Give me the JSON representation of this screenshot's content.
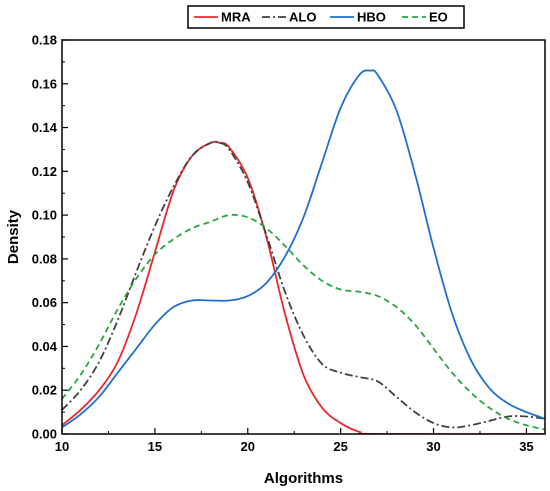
{
  "chart_data": {
    "type": "line",
    "xlabel": "Algorithms",
    "ylabel": "Density",
    "xlim": [
      10,
      36
    ],
    "ylim": [
      0,
      0.18
    ],
    "x_ticks": [
      10,
      15,
      20,
      25,
      30,
      35
    ],
    "y_ticks": [
      0.0,
      0.02,
      0.04,
      0.06,
      0.08,
      0.1,
      0.12,
      0.14,
      0.16,
      0.18
    ],
    "grid": false,
    "legend_position": "top",
    "series": [
      {
        "name": "MRA",
        "color": "#e8282b",
        "dash": "solid",
        "points": [
          [
            10,
            0.004
          ],
          [
            11,
            0.011
          ],
          [
            12,
            0.02
          ],
          [
            13,
            0.033
          ],
          [
            14,
            0.055
          ],
          [
            15,
            0.083
          ],
          [
            16,
            0.111
          ],
          [
            17,
            0.127
          ],
          [
            18,
            0.133
          ],
          [
            18.5,
            0.133
          ],
          [
            19,
            0.131
          ],
          [
            20,
            0.117
          ],
          [
            21,
            0.09
          ],
          [
            22,
            0.055
          ],
          [
            23,
            0.027
          ],
          [
            24,
            0.012
          ],
          [
            25,
            0.005
          ],
          [
            26,
            0.001
          ],
          [
            27,
            0.0
          ],
          [
            36,
            0.0
          ]
        ]
      },
      {
        "name": "ALO",
        "color": "#404040",
        "dash": "dashdot",
        "points": [
          [
            10,
            0.011
          ],
          [
            11,
            0.02
          ],
          [
            12,
            0.033
          ],
          [
            13,
            0.052
          ],
          [
            14,
            0.074
          ],
          [
            15,
            0.095
          ],
          [
            16,
            0.113
          ],
          [
            17,
            0.127
          ],
          [
            18,
            0.133
          ],
          [
            18.5,
            0.133
          ],
          [
            19,
            0.13
          ],
          [
            20,
            0.115
          ],
          [
            21,
            0.091
          ],
          [
            22,
            0.065
          ],
          [
            23,
            0.045
          ],
          [
            24,
            0.032
          ],
          [
            25,
            0.028
          ],
          [
            26,
            0.026
          ],
          [
            27,
            0.024
          ],
          [
            28,
            0.017
          ],
          [
            29,
            0.01
          ],
          [
            30,
            0.005
          ],
          [
            31,
            0.003
          ],
          [
            32,
            0.004
          ],
          [
            33,
            0.006
          ],
          [
            34,
            0.008
          ],
          [
            35,
            0.008
          ],
          [
            36,
            0.007
          ]
        ]
      },
      {
        "name": "HBO",
        "color": "#1f6fd1",
        "dash": "solid",
        "points": [
          [
            10,
            0.003
          ],
          [
            11,
            0.009
          ],
          [
            12,
            0.017
          ],
          [
            13,
            0.028
          ],
          [
            14,
            0.039
          ],
          [
            15,
            0.05
          ],
          [
            16,
            0.058
          ],
          [
            17,
            0.061
          ],
          [
            18,
            0.061
          ],
          [
            19,
            0.061
          ],
          [
            20,
            0.063
          ],
          [
            21,
            0.069
          ],
          [
            22,
            0.081
          ],
          [
            23,
            0.099
          ],
          [
            24,
            0.124
          ],
          [
            25,
            0.149
          ],
          [
            26,
            0.164
          ],
          [
            26.6,
            0.166
          ],
          [
            27,
            0.164
          ],
          [
            28,
            0.148
          ],
          [
            29,
            0.119
          ],
          [
            30,
            0.085
          ],
          [
            31,
            0.055
          ],
          [
            32,
            0.034
          ],
          [
            33,
            0.021
          ],
          [
            34,
            0.014
          ],
          [
            35,
            0.01
          ],
          [
            36,
            0.007
          ]
        ]
      },
      {
        "name": "EO",
        "color": "#2ca63c",
        "dash": "dashed",
        "points": [
          [
            10,
            0.016
          ],
          [
            11,
            0.027
          ],
          [
            12,
            0.041
          ],
          [
            13,
            0.057
          ],
          [
            14,
            0.071
          ],
          [
            15,
            0.082
          ],
          [
            16,
            0.089
          ],
          [
            17,
            0.094
          ],
          [
            18,
            0.097
          ],
          [
            19,
            0.1
          ],
          [
            20,
            0.099
          ],
          [
            21,
            0.094
          ],
          [
            22,
            0.086
          ],
          [
            23,
            0.077
          ],
          [
            24,
            0.07
          ],
          [
            25,
            0.066
          ],
          [
            26,
            0.065
          ],
          [
            27,
            0.063
          ],
          [
            28,
            0.058
          ],
          [
            29,
            0.05
          ],
          [
            30,
            0.039
          ],
          [
            31,
            0.028
          ],
          [
            32,
            0.019
          ],
          [
            33,
            0.012
          ],
          [
            34,
            0.007
          ],
          [
            35,
            0.004
          ],
          [
            36,
            0.002
          ]
        ]
      }
    ]
  }
}
